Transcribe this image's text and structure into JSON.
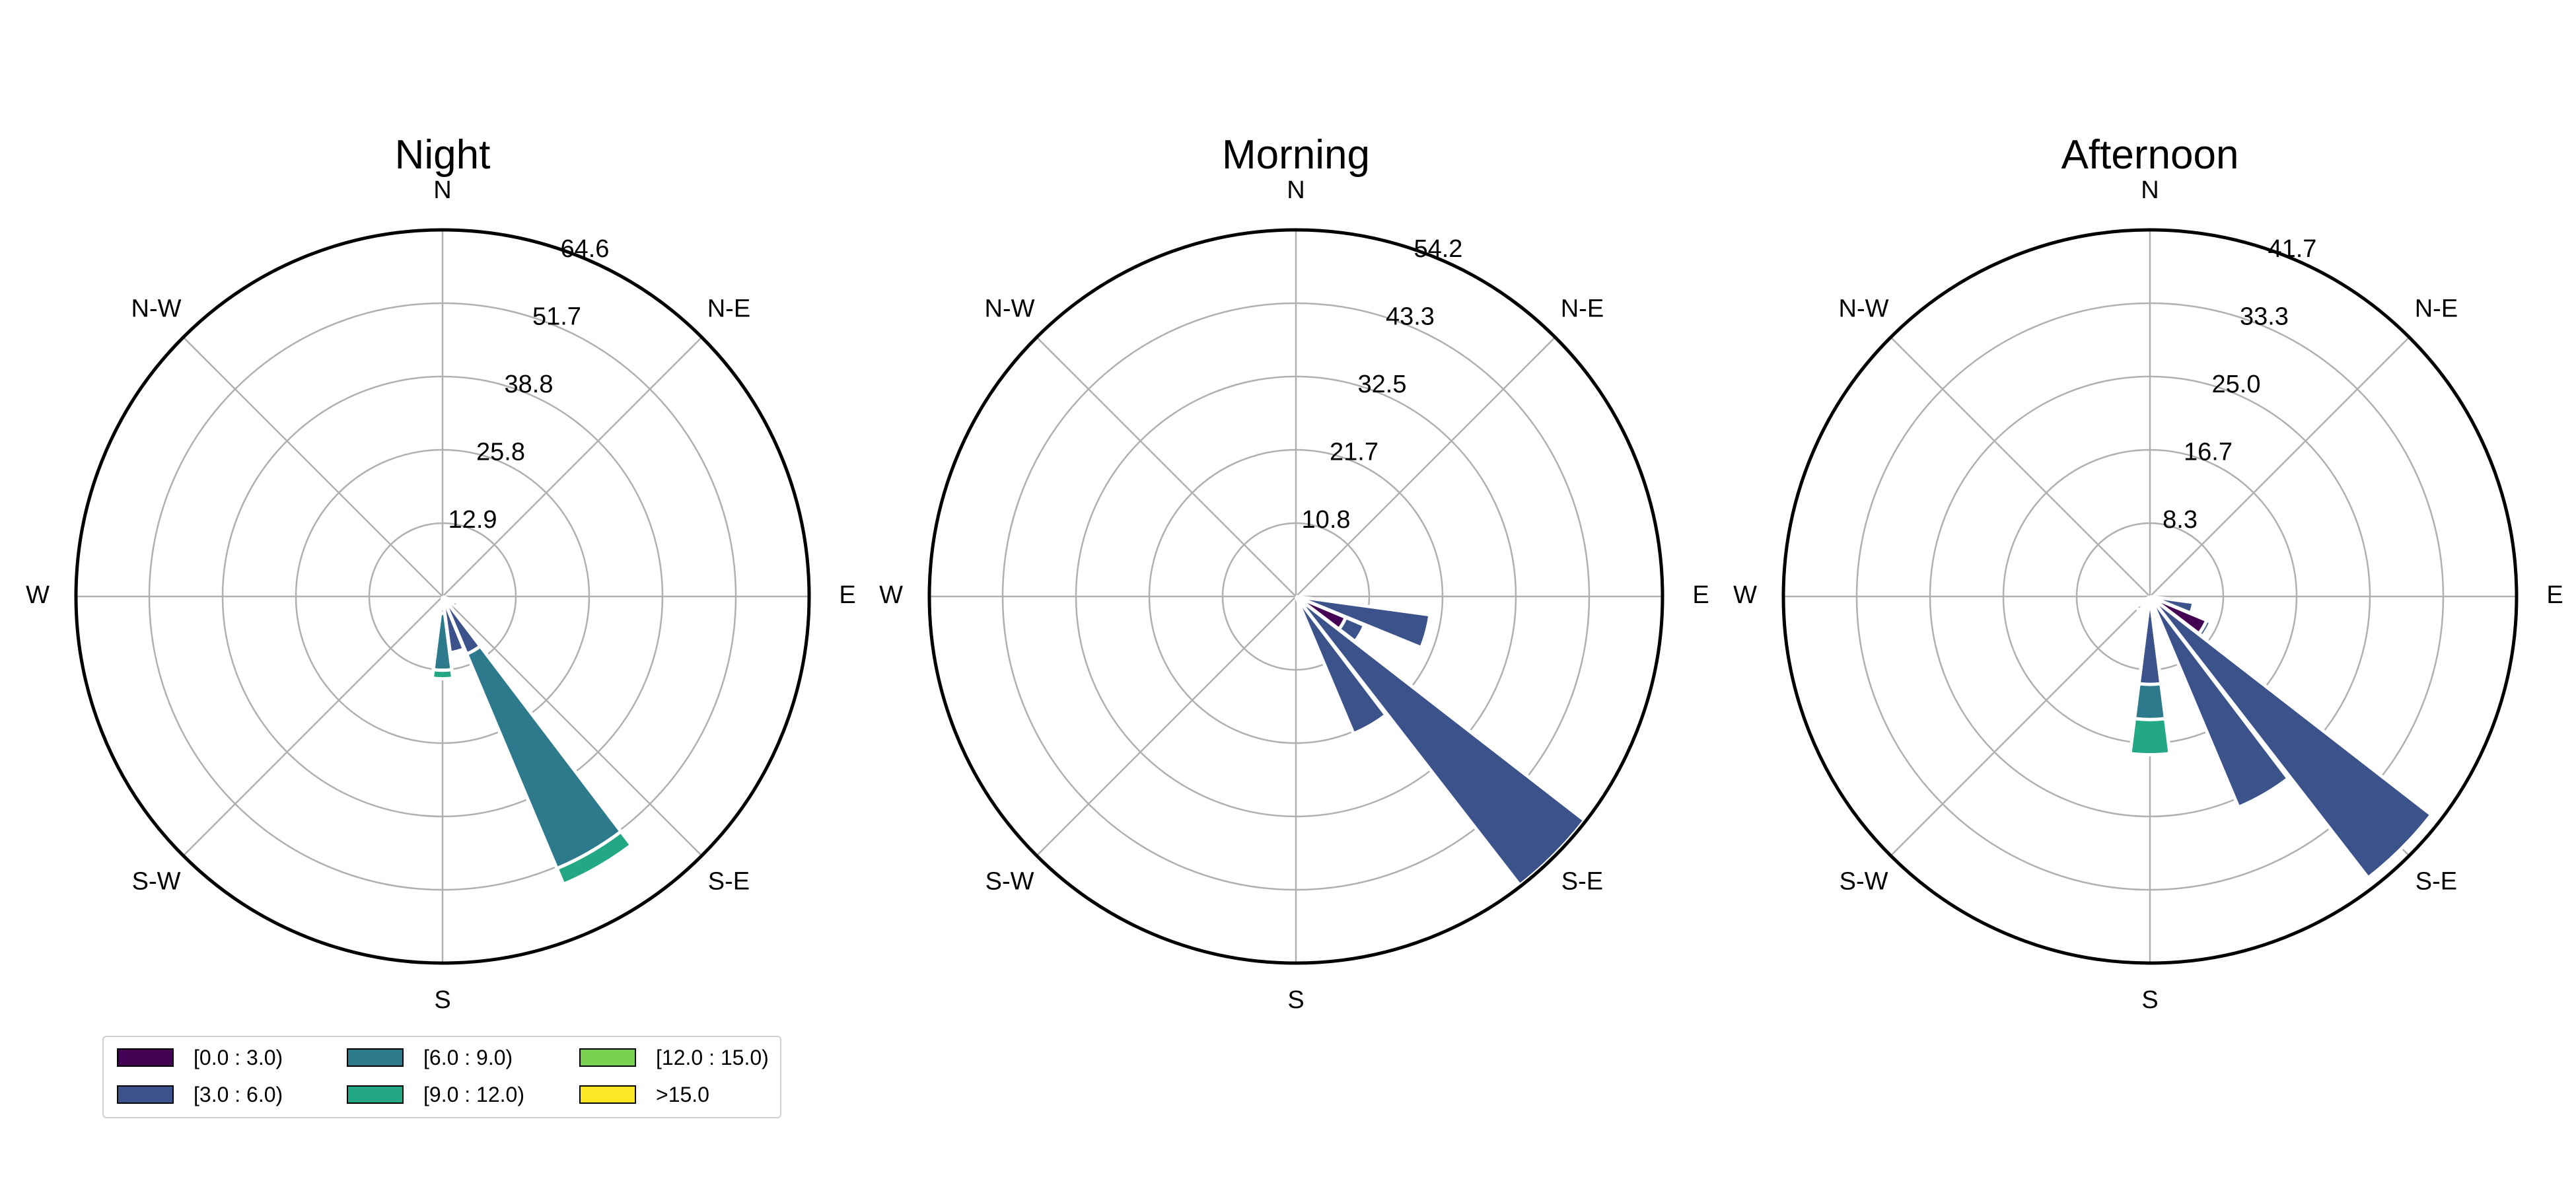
{
  "chart_data": {
    "type": "windrose",
    "bins": [
      {
        "label": "[0.0 : 3.0)",
        "color": "#440154"
      },
      {
        "label": "[3.0 : 6.0)",
        "color": "#3b528b"
      },
      {
        "label": "[6.0 : 9.0)",
        "color": "#2c7a8c"
      },
      {
        "label": "[9.0 : 12.0)",
        "color": "#22a884"
      },
      {
        "label": "[12.0 : 15.0)",
        "color": "#7ad151"
      },
      {
        "label": ">15.0",
        "color": "#fde725"
      }
    ],
    "direction_labels": [
      "N",
      "N-E",
      "E",
      "S-E",
      "S",
      "S-W",
      "W",
      "N-W"
    ],
    "panels": [
      {
        "title": "Night",
        "rmax": 64.6,
        "rticks": [
          "12.9",
          "25.8",
          "38.8",
          "51.7",
          "64.6"
        ],
        "sectors": [
          {
            "dir": 120,
            "stack": [
              0,
              3.0
            ]
          },
          {
            "dir": 135,
            "stack": [
              0,
              1.0
            ]
          },
          {
            "dir": 150,
            "stack": [
              0,
              11,
              41,
              3
            ]
          },
          {
            "dir": 165,
            "stack": [
              0,
              10,
              0.5
            ]
          },
          {
            "dir": 180,
            "stack": [
              0,
              3,
              10,
              1.5
            ]
          }
        ]
      },
      {
        "title": "Morning",
        "rmax": 54.2,
        "rticks": [
          "10.8",
          "21.7",
          "32.5",
          "43.3",
          "54.2"
        ],
        "sectors": [
          {
            "dir": 105,
            "stack": [
              0,
              20
            ]
          },
          {
            "dir": 120,
            "stack": [
              8,
              3
            ]
          },
          {
            "dir": 135,
            "stack": [
              2,
              52
            ]
          },
          {
            "dir": 150,
            "stack": [
              0,
              22
            ]
          }
        ]
      },
      {
        "title": "Afternoon",
        "rmax": 41.7,
        "rticks": [
          "8.3",
          "16.7",
          "25.0",
          "33.3",
          "41.7"
        ],
        "sectors": [
          {
            "dir": 105,
            "stack": [
              0,
              5
            ]
          },
          {
            "dir": 120,
            "stack": [
              7,
              0.5
            ]
          },
          {
            "dir": 135,
            "stack": [
              0.5,
              40
            ]
          },
          {
            "dir": 150,
            "stack": [
              0,
              26
            ]
          },
          {
            "dir": 165,
            "stack": [
              0,
              0.5
            ]
          },
          {
            "dir": 180,
            "stack": [
              0,
              10,
              4,
              4
            ]
          },
          {
            "dir": 225,
            "stack": [
              0,
              0,
              2
            ]
          }
        ]
      }
    ],
    "legend": {
      "position": "bottom-left",
      "columns": 3
    },
    "grid": true
  }
}
